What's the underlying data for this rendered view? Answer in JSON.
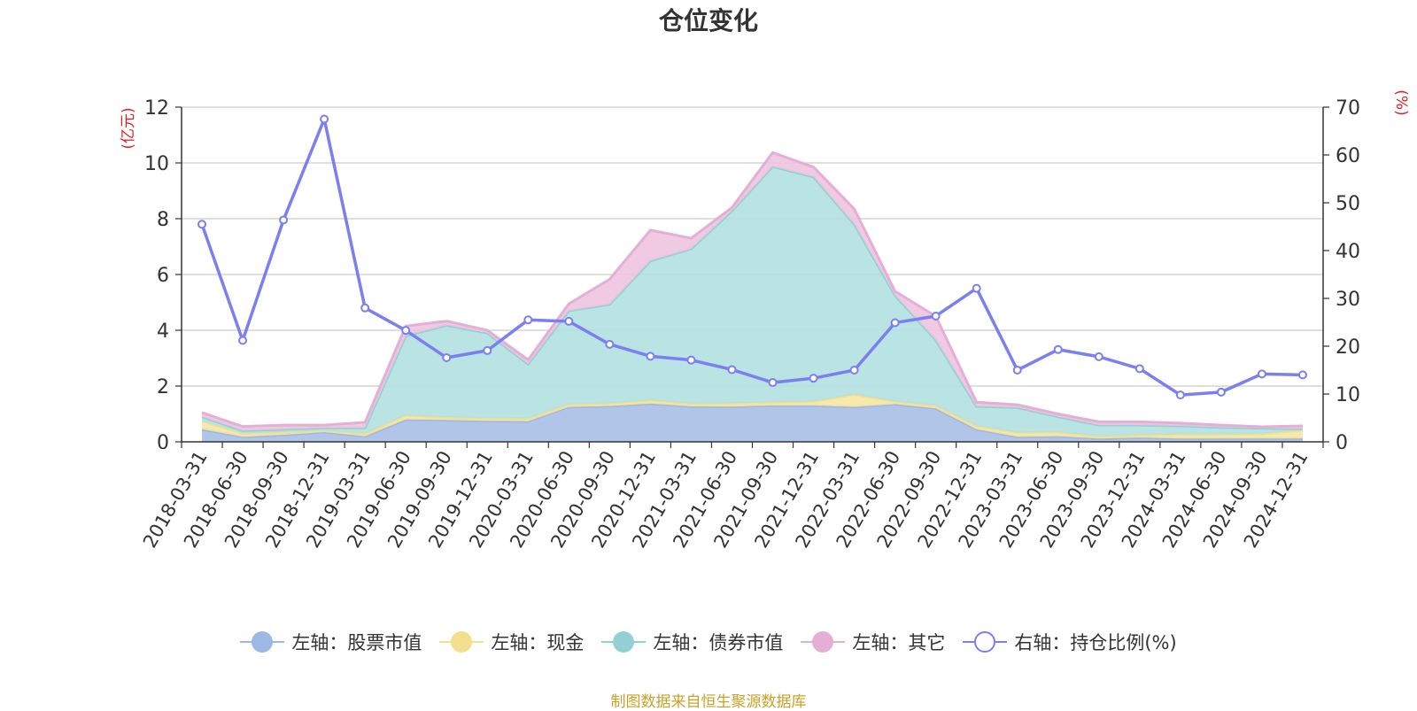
{
  "title": "仓位变化",
  "source": "制图数据来自恒生聚源数据库",
  "colors": {
    "stock": "#a9bfe6",
    "stock_line": "#9db8e2",
    "cash": "#f6e6a2",
    "cash_line": "#f3df8e",
    "bond": "#b3e0e0",
    "bond_line": "#92d0d2",
    "other": "#edc4df",
    "other_line": "#e5afd5",
    "ratio": "#7b7ff0",
    "axis_label": "#e02020"
  },
  "chart_data": {
    "type": "area",
    "title": "仓位变化",
    "categories": [
      "2018-03-31",
      "2018-06-30",
      "2018-09-30",
      "2018-12-31",
      "2019-03-31",
      "2019-06-30",
      "2019-09-30",
      "2019-12-31",
      "2020-03-31",
      "2020-06-30",
      "2020-09-30",
      "2020-12-31",
      "2021-03-31",
      "2021-06-30",
      "2021-09-30",
      "2021-12-31",
      "2022-03-31",
      "2022-06-30",
      "2022-09-30",
      "2022-12-31",
      "2023-03-31",
      "2023-06-30",
      "2023-09-30",
      "2023-12-31",
      "2024-03-31",
      "2024-06-30",
      "2024-09-30",
      "2024-12-31"
    ],
    "left_axis": {
      "label": "(亿元)",
      "min": 0,
      "max": 12,
      "ticks": [
        0,
        2,
        4,
        6,
        8,
        10,
        12
      ]
    },
    "right_axis": {
      "label": "(%)",
      "min": 0,
      "max": 70,
      "ticks": [
        0,
        10,
        20,
        30,
        40,
        50,
        60,
        70
      ]
    },
    "series": [
      {
        "name": "左轴：股票市值",
        "key": "stock",
        "axis": "left",
        "stack": true,
        "values": [
          0.45,
          0.18,
          0.25,
          0.35,
          0.2,
          0.8,
          0.78,
          0.75,
          0.74,
          1.25,
          1.28,
          1.37,
          1.27,
          1.26,
          1.3,
          1.3,
          1.25,
          1.35,
          1.2,
          0.45,
          0.18,
          0.2,
          0.12,
          0.15,
          0.12,
          0.12,
          0.12,
          0.12
        ]
      },
      {
        "name": "左轴：现金",
        "key": "cash",
        "axis": "left",
        "stack": true,
        "values": [
          0.3,
          0.12,
          0.1,
          0.05,
          0.1,
          0.15,
          0.1,
          0.1,
          0.1,
          0.1,
          0.1,
          0.12,
          0.1,
          0.12,
          0.12,
          0.15,
          0.45,
          0.1,
          0.1,
          0.12,
          0.15,
          0.15,
          0.08,
          0.1,
          0.15,
          0.15,
          0.17,
          0.3
        ]
      },
      {
        "name": "左轴：债券市值",
        "key": "bond",
        "axis": "left",
        "stack": true,
        "values": [
          0.15,
          0.1,
          0.1,
          0.1,
          0.2,
          2.85,
          3.3,
          3.05,
          1.95,
          3.35,
          3.55,
          5.0,
          5.55,
          6.9,
          8.45,
          8.05,
          6.1,
          3.8,
          2.35,
          0.7,
          0.9,
          0.55,
          0.4,
          0.35,
          0.3,
          0.25,
          0.2,
          0.05
        ]
      },
      {
        "name": "左轴：其它",
        "key": "other",
        "axis": "left",
        "stack": true,
        "values": [
          0.15,
          0.15,
          0.15,
          0.1,
          0.2,
          0.35,
          0.15,
          0.1,
          0.15,
          0.25,
          0.9,
          1.1,
          0.38,
          0.12,
          0.5,
          0.35,
          0.55,
          0.15,
          0.85,
          0.15,
          0.1,
          0.1,
          0.12,
          0.12,
          0.1,
          0.08,
          0.05,
          0.1
        ]
      },
      {
        "name": "右轴：持仓比例(%)",
        "key": "ratio",
        "axis": "right",
        "stack": false,
        "values": [
          45.5,
          21.2,
          46.4,
          67.5,
          28.0,
          23.3,
          17.6,
          19.1,
          25.5,
          25.2,
          20.4,
          17.9,
          17.1,
          15.1,
          12.4,
          13.3,
          15.0,
          24.9,
          26.3,
          32.1,
          15.0,
          19.3,
          17.8,
          15.3,
          9.8,
          10.4,
          14.2,
          14.0
        ]
      }
    ]
  }
}
